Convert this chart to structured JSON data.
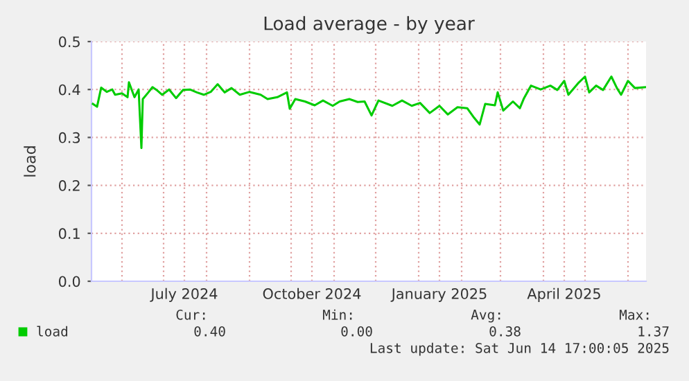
{
  "chart_data": {
    "type": "line",
    "title": "Load average - by year",
    "ylabel": "load",
    "x": [
      "2024-05-11",
      "2024-05-14",
      "2024-05-17",
      "2024-05-21",
      "2024-05-25",
      "2024-05-27",
      "2024-06-01",
      "2024-06-05",
      "2024-06-06",
      "2024-06-10",
      "2024-06-13",
      "2024-06-15",
      "2024-06-16",
      "2024-06-20",
      "2024-06-23",
      "2024-06-26",
      "2024-06-30",
      "2024-07-05",
      "2024-07-10",
      "2024-07-15",
      "2024-07-20",
      "2024-07-25",
      "2024-07-30",
      "2024-08-04",
      "2024-08-09",
      "2024-08-14",
      "2024-08-19",
      "2024-08-25",
      "2024-09-01",
      "2024-09-09",
      "2024-09-14",
      "2024-09-21",
      "2024-09-28",
      "2024-09-30",
      "2024-10-04",
      "2024-10-11",
      "2024-10-18",
      "2024-10-24",
      "2024-10-31",
      "2024-11-05",
      "2024-11-12",
      "2024-11-18",
      "2024-11-23",
      "2024-11-28",
      "2024-12-03",
      "2024-12-13",
      "2024-12-20",
      "2024-12-27",
      "2025-01-02",
      "2025-01-09",
      "2025-01-16",
      "2025-01-22",
      "2025-01-29",
      "2025-02-05",
      "2025-02-10",
      "2025-02-14",
      "2025-02-18",
      "2025-02-25",
      "2025-02-27",
      "2025-03-03",
      "2025-03-10",
      "2025-03-15",
      "2025-03-18",
      "2025-03-23",
      "2025-03-30",
      "2025-04-06",
      "2025-04-11",
      "2025-04-16",
      "2025-04-19",
      "2025-04-26",
      "2025-05-01",
      "2025-05-04",
      "2025-05-09",
      "2025-05-14",
      "2025-05-20",
      "2025-05-24",
      "2025-05-27",
      "2025-06-01",
      "2025-06-06",
      "2025-06-14"
    ],
    "series": [
      {
        "name": "load",
        "color": "#00cc00",
        "values": [
          0.37,
          0.364,
          0.404,
          0.395,
          0.4,
          0.389,
          0.392,
          0.384,
          0.415,
          0.384,
          0.4,
          0.278,
          0.38,
          0.394,
          0.405,
          0.399,
          0.389,
          0.4,
          0.382,
          0.399,
          0.4,
          0.394,
          0.389,
          0.395,
          0.411,
          0.394,
          0.403,
          0.389,
          0.395,
          0.389,
          0.38,
          0.384,
          0.394,
          0.36,
          0.38,
          0.375,
          0.367,
          0.377,
          0.366,
          0.375,
          0.38,
          0.374,
          0.375,
          0.346,
          0.377,
          0.366,
          0.377,
          0.366,
          0.372,
          0.351,
          0.366,
          0.348,
          0.363,
          0.361,
          0.341,
          0.327,
          0.37,
          0.367,
          0.394,
          0.356,
          0.375,
          0.361,
          0.382,
          0.408,
          0.4,
          0.408,
          0.399,
          0.418,
          0.389,
          0.413,
          0.427,
          0.394,
          0.408,
          0.399,
          0.427,
          0.403,
          0.389,
          0.418,
          0.403,
          0.405
        ]
      }
    ],
    "xlim": [
      "2024-05-10",
      "2025-06-14"
    ],
    "xticks": [
      {
        "value": "2024-06-01",
        "label": null
      },
      {
        "value": "2024-07-01",
        "label": null
      },
      {
        "value": "2024-07-16",
        "label": "July 2024"
      },
      {
        "value": "2024-08-01",
        "label": null
      },
      {
        "value": "2024-09-01",
        "label": null
      },
      {
        "value": "2024-10-01",
        "label": null
      },
      {
        "value": "2024-10-16",
        "label": "October 2024"
      },
      {
        "value": "2024-11-01",
        "label": null
      },
      {
        "value": "2024-12-01",
        "label": null
      },
      {
        "value": "2025-01-01",
        "label": null
      },
      {
        "value": "2025-01-16",
        "label": "January 2025"
      },
      {
        "value": "2025-02-01",
        "label": null
      },
      {
        "value": "2025-03-01",
        "label": null
      },
      {
        "value": "2025-04-01",
        "label": null
      },
      {
        "value": "2025-04-16",
        "label": "April 2025"
      },
      {
        "value": "2025-05-01",
        "label": null
      },
      {
        "value": "2025-06-01",
        "label": null
      }
    ],
    "ylim": [
      0,
      0.5
    ],
    "yticks": [
      {
        "value": 0,
        "label": "0.0"
      },
      {
        "value": 0.1,
        "label": "0.1"
      },
      {
        "value": 0.2,
        "label": "0.2"
      },
      {
        "value": 0.3,
        "label": "0.3"
      },
      {
        "value": 0.4,
        "label": "0.4"
      },
      {
        "value": 0.5,
        "label": "0.5"
      }
    ],
    "grid": true,
    "legend": "bottom",
    "line_style": "solid",
    "marker": "none",
    "annotations": [
      "Cur:",
      "0.40",
      "Min:",
      "0.00",
      "Avg:",
      "0.38",
      "Max:",
      "1.37",
      "Last update: Sat Jun 14 17:00:05 2025"
    ]
  }
}
